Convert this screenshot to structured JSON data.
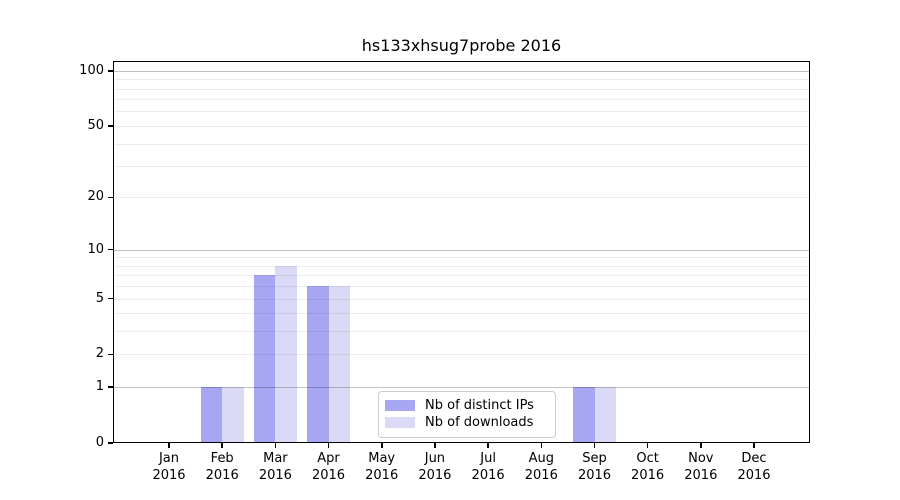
{
  "figure": {
    "background": "#ffffff",
    "text_color": "#000000"
  },
  "chart_data": {
    "type": "bar",
    "title": "hs133xhsug7probe 2016",
    "xlabel": "",
    "ylabel": "",
    "yscale": "log1p",
    "ylim": [
      0,
      113
    ],
    "grid": true,
    "categories": [
      "Jan\n2016",
      "Feb\n2016",
      "Mar\n2016",
      "Apr\n2016",
      "May\n2016",
      "Jun\n2016",
      "Jul\n2016",
      "Aug\n2016",
      "Sep\n2016",
      "Oct\n2016",
      "Nov\n2016",
      "Dec\n2016"
    ],
    "series": [
      {
        "name": "Nb of distinct IPs",
        "color": "#a6a6f2",
        "values": [
          0,
          1,
          7,
          6,
          0,
          0,
          0,
          0,
          1,
          0,
          0,
          0
        ]
      },
      {
        "name": "Nb of downloads",
        "color": "#dadaf7",
        "values": [
          0,
          1,
          8,
          6,
          0,
          0,
          0,
          0,
          1,
          0,
          0,
          0
        ]
      }
    ],
    "yticks": [
      0,
      1,
      2,
      5,
      10,
      20,
      50,
      100
    ],
    "ytick_labels": [
      "0",
      "1",
      "2",
      "5",
      "10",
      "20",
      "50",
      "100"
    ],
    "major_gridlines": [
      1,
      10,
      100
    ],
    "minor_gridlines": [
      2,
      3,
      4,
      5,
      6,
      7,
      8,
      9,
      20,
      30,
      40,
      50,
      60,
      70,
      80,
      90
    ],
    "legend": {
      "position": "lower-center-inside",
      "entries": [
        "Nb of distinct IPs",
        "Nb of downloads"
      ]
    }
  }
}
